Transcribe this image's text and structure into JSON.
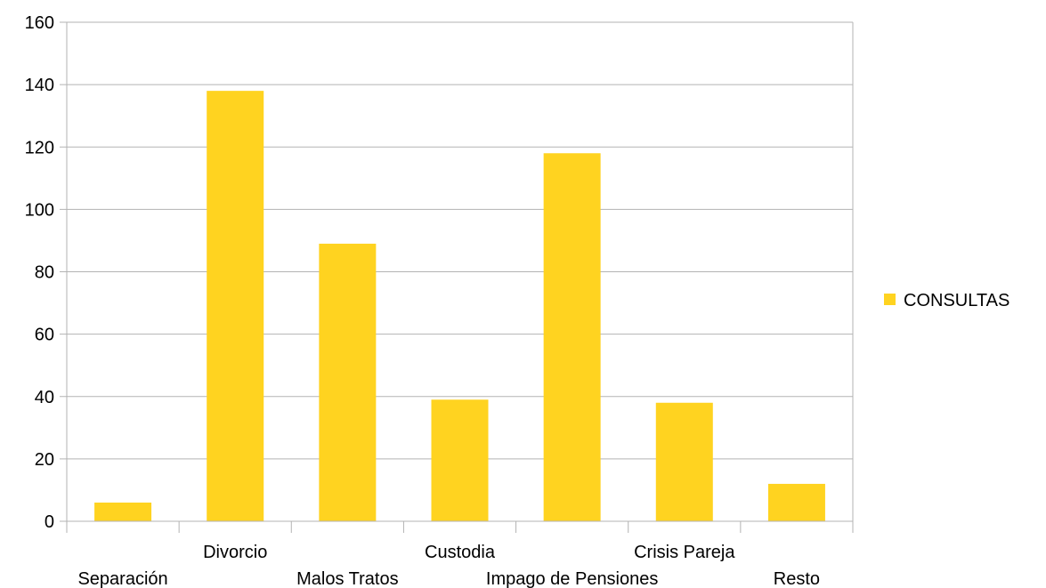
{
  "chart_data": {
    "type": "bar",
    "categories": [
      "Separación",
      "Divorcio",
      "Malos Tratos",
      "Custodia",
      "Impago de Pensiones",
      "Crisis Pareja",
      "Resto"
    ],
    "series": [
      {
        "name": "CONSULTAS",
        "values": [
          6,
          138,
          89,
          39,
          118,
          38,
          12
        ],
        "color": "#FFD320"
      }
    ],
    "title": "",
    "xlabel": "",
    "ylabel": "",
    "ylim": [
      0,
      160
    ],
    "yticks": [
      0,
      20,
      40,
      60,
      80,
      100,
      120,
      140,
      160
    ],
    "grid": true,
    "legend_position": "right"
  }
}
